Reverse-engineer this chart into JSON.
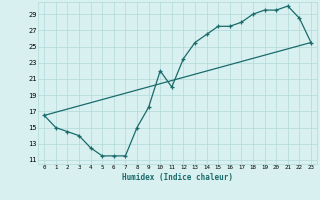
{
  "xlabel": "Humidex (Indice chaleur)",
  "line1_x": [
    0,
    1,
    2,
    3,
    4,
    5,
    6,
    7,
    8,
    9,
    10,
    11,
    12,
    13,
    14,
    15,
    16,
    17,
    18,
    19,
    20,
    21,
    22,
    23
  ],
  "line1_y": [
    16.5,
    15.0,
    14.5,
    14.0,
    12.5,
    11.5,
    11.5,
    11.5,
    15.0,
    17.5,
    22.0,
    20.0,
    23.5,
    25.5,
    26.5,
    27.5,
    27.5,
    28.0,
    29.0,
    29.5,
    29.5,
    30.0,
    28.5,
    25.5
  ],
  "line2_x": [
    0,
    23
  ],
  "line2_y": [
    16.5,
    25.5
  ],
  "line_color": "#1a6b6b",
  "bg_color": "#d9f0f0",
  "grid_color": "#b0d8d8",
  "xlim": [
    -0.5,
    23.5
  ],
  "ylim": [
    10.5,
    30.5
  ],
  "yticks": [
    11,
    13,
    15,
    17,
    19,
    21,
    23,
    25,
    27,
    29
  ],
  "xticks": [
    0,
    1,
    2,
    3,
    4,
    5,
    6,
    7,
    8,
    9,
    10,
    11,
    12,
    13,
    14,
    15,
    16,
    17,
    18,
    19,
    20,
    21,
    22,
    23
  ],
  "xtick_labels": [
    "0",
    "1",
    "2",
    "3",
    "4",
    "5",
    "6",
    "7",
    "8",
    "9",
    "10",
    "11",
    "12",
    "13",
    "14",
    "15",
    "16",
    "17",
    "18",
    "19",
    "20",
    "21",
    "22",
    "23"
  ]
}
